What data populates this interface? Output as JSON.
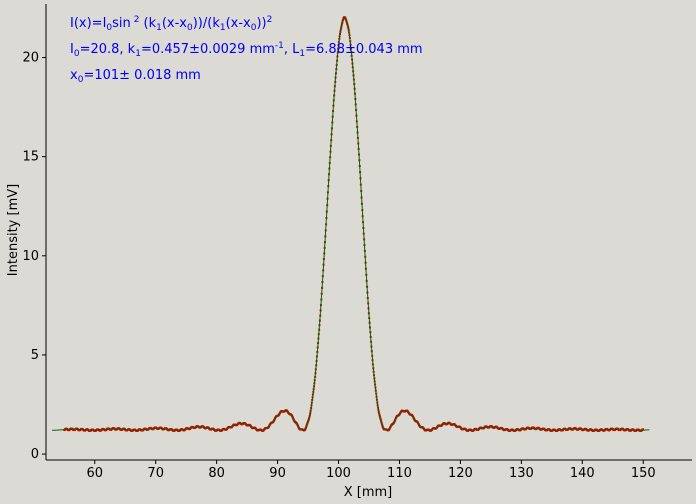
{
  "chart_data": {
    "type": "scatter",
    "title": "",
    "xlabel": "X [mm]",
    "ylabel": "Intensity [mV]",
    "xlim": [
      52,
      158
    ],
    "ylim": [
      -0.3,
      22.7
    ],
    "xticks": [
      60,
      70,
      80,
      90,
      100,
      110,
      120,
      130,
      140,
      150
    ],
    "yticks": [
      0,
      5,
      10,
      15,
      20
    ],
    "grid": false,
    "colors": {
      "measured": "#dd0000",
      "fit": "#006600",
      "annotation": "#0000ee",
      "background": "#dcdad5"
    },
    "model": {
      "formula_parts": {
        "lead": "I(x)=I",
        "sub0": "0",
        "sin": "sin",
        "pow": "2",
        "open": "(k",
        "sub1": "1",
        "mid": "(x-x",
        "sub2": "0",
        "midclose": "))/(k",
        "sub3": "1",
        "mid2": "(x-x",
        "sub4": "0",
        "close": "))",
        "pow2": "2"
      },
      "params_line1": {
        "i_label": "I",
        "i_sub": "0",
        "i_val": "=20.8,  k",
        "k_sub": "1",
        "k_val": "=0.457±0.0029 mm",
        "k_unit_sup": "-1",
        "l_sep": ",   L",
        "l_sub": "1",
        "l_val": "=6.88±0.043 mm"
      },
      "params_line2": {
        "x_label": "x",
        "x_sub": "0",
        "x_val": "=101±   0.018 mm"
      },
      "I0": 20.8,
      "k1": 0.457,
      "x0": 101,
      "baseline": 1.2
    },
    "x_range_measured": [
      55,
      150
    ],
    "x_range_fit": [
      53,
      151
    ]
  }
}
